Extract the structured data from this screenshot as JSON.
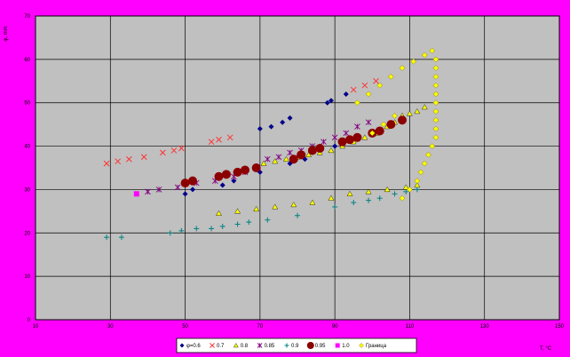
{
  "colors": {
    "outer_bg": "#ff00ff",
    "chart_area": "#ffffff",
    "plot_bg": "#c0c0c0",
    "grid": "#000000",
    "frame_line": "#000000"
  },
  "chart_data": {
    "type": "scatter",
    "xlabel": "T, °C",
    "ylabel": "φ, mm",
    "xlim": [
      10,
      150
    ],
    "ylim": [
      0,
      70
    ],
    "xticks": [
      "10",
      "30",
      "50",
      "70",
      "90",
      "110",
      "130",
      "150"
    ],
    "yticks": [
      "0",
      "10",
      "20",
      "30",
      "40",
      "50",
      "60",
      "70"
    ],
    "grid": true,
    "legend_position": "bottom",
    "series": [
      {
        "name": "φ=0.6",
        "marker": "diamond",
        "color": "#00008b",
        "points": [
          [
            50,
            29
          ],
          [
            52,
            30
          ],
          [
            60,
            31
          ],
          [
            63,
            32
          ],
          [
            70,
            34
          ],
          [
            70,
            44
          ],
          [
            73,
            44.5
          ],
          [
            76,
            45.5
          ],
          [
            78,
            46.5
          ],
          [
            78,
            36
          ],
          [
            82,
            37
          ],
          [
            88,
            50
          ],
          [
            89,
            50.5
          ],
          [
            93,
            52
          ],
          [
            90,
            40
          ],
          [
            92,
            41
          ]
        ]
      },
      {
        "name": "0.7",
        "marker": "x",
        "color": "#ff3333",
        "points": [
          [
            29,
            36
          ],
          [
            32,
            36.5
          ],
          [
            35,
            37
          ],
          [
            39,
            37.5
          ],
          [
            44,
            38.5
          ],
          [
            47,
            39
          ],
          [
            49,
            39.5
          ],
          [
            57,
            41
          ],
          [
            59,
            41.5
          ],
          [
            62,
            42
          ],
          [
            95,
            53
          ],
          [
            98,
            54
          ],
          [
            101,
            55
          ]
        ]
      },
      {
        "name": "0.8",
        "marker": "triangle",
        "color": "#ffff00",
        "points": [
          [
            71,
            36
          ],
          [
            74,
            36.5
          ],
          [
            77,
            37
          ],
          [
            80,
            37.5
          ],
          [
            83,
            38
          ],
          [
            86,
            38.5
          ],
          [
            89,
            39
          ],
          [
            92,
            40
          ],
          [
            95,
            41
          ],
          [
            98,
            42
          ],
          [
            101,
            43
          ],
          [
            104,
            44.5
          ],
          [
            106,
            45.5
          ],
          [
            108,
            47
          ],
          [
            110,
            47.5
          ],
          [
            112,
            48
          ],
          [
            114,
            49
          ],
          [
            59,
            24.5
          ],
          [
            64,
            25
          ],
          [
            69,
            25.5
          ],
          [
            74,
            26
          ],
          [
            79,
            26.5
          ],
          [
            84,
            27
          ],
          [
            89,
            28
          ],
          [
            94,
            29
          ],
          [
            99,
            29.5
          ],
          [
            104,
            30
          ],
          [
            109,
            30.5
          ],
          [
            112,
            31
          ]
        ]
      },
      {
        "name": "0.85",
        "marker": "star",
        "color": "#800080",
        "points": [
          [
            40,
            29.5
          ],
          [
            43,
            30
          ],
          [
            48,
            30.5
          ],
          [
            53,
            31.5
          ],
          [
            58,
            32
          ],
          [
            63,
            33
          ],
          [
            66,
            34
          ],
          [
            69,
            35
          ],
          [
            72,
            37
          ],
          [
            75,
            37.5
          ],
          [
            78,
            38.5
          ],
          [
            81,
            39
          ],
          [
            84,
            40
          ],
          [
            87,
            41
          ],
          [
            90,
            42
          ],
          [
            93,
            43
          ],
          [
            96,
            44.5
          ],
          [
            99,
            45.5
          ]
        ]
      },
      {
        "name": "0.9",
        "marker": "plus",
        "color": "#008080",
        "points": [
          [
            29,
            19
          ],
          [
            33,
            19
          ],
          [
            46,
            20
          ],
          [
            49,
            20.5
          ],
          [
            53,
            21
          ],
          [
            57,
            21
          ],
          [
            60,
            21.5
          ],
          [
            64,
            22
          ],
          [
            67,
            22.5
          ],
          [
            72,
            23
          ],
          [
            80,
            24
          ],
          [
            90,
            26
          ],
          [
            95,
            27
          ],
          [
            99,
            27.5
          ],
          [
            102,
            28
          ],
          [
            106,
            29
          ],
          [
            109,
            29.5
          ],
          [
            112,
            30
          ]
        ]
      },
      {
        "name": "0.95",
        "marker": "circle",
        "color": "#8b0000",
        "points": [
          [
            50,
            31.5
          ],
          [
            52,
            32
          ],
          [
            59,
            33
          ],
          [
            61,
            33.5
          ],
          [
            64,
            34
          ],
          [
            66,
            34.5
          ],
          [
            69,
            35
          ],
          [
            79,
            37
          ],
          [
            81,
            38
          ],
          [
            84,
            39
          ],
          [
            86,
            39.5
          ],
          [
            92,
            41
          ],
          [
            94,
            41.5
          ],
          [
            96,
            42
          ],
          [
            100,
            43
          ],
          [
            102,
            43.5
          ],
          [
            105,
            45
          ],
          [
            108,
            46
          ]
        ]
      },
      {
        "name": "1.0",
        "marker": "square",
        "color": "#ff00ff",
        "points": [
          [
            37,
            29
          ]
        ]
      },
      {
        "name": "Граница",
        "marker": "diamond-open",
        "color": "#ffff00",
        "points": [
          [
            96,
            50
          ],
          [
            99,
            52
          ],
          [
            102,
            54
          ],
          [
            105,
            56
          ],
          [
            108,
            58
          ],
          [
            111,
            59.5
          ],
          [
            114,
            61
          ],
          [
            116,
            62
          ],
          [
            117,
            60
          ],
          [
            117,
            58
          ],
          [
            117,
            56
          ],
          [
            117,
            54
          ],
          [
            117,
            52
          ],
          [
            117,
            50
          ],
          [
            117,
            48
          ],
          [
            117,
            46
          ],
          [
            117,
            44
          ],
          [
            117,
            42
          ],
          [
            116,
            40
          ],
          [
            115,
            38
          ],
          [
            114,
            36
          ],
          [
            113,
            34
          ],
          [
            112,
            32
          ],
          [
            110,
            30
          ],
          [
            108,
            28
          ],
          [
            106,
            47
          ],
          [
            103,
            45
          ],
          [
            100,
            43
          ]
        ]
      }
    ]
  }
}
